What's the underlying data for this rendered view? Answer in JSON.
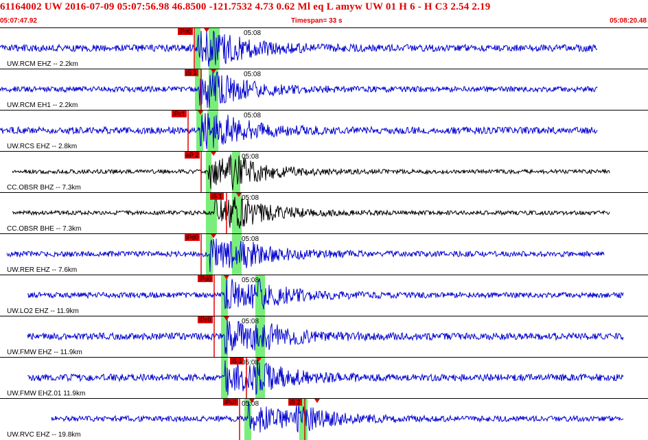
{
  "header": {
    "title": "61164002 UW 2016-07-09 05:07:56.98   46.8500 -121.7532   4.73  0.62 Ml  eq  L amyw     UW 01  H   6  -  H C3     2.54  2.19",
    "start_time": "05:07:47.92",
    "timespan": "Timespan=  33 s",
    "end_time": "05:08:20.48"
  },
  "colors": {
    "trace_blue": "#0000d0",
    "trace_black": "#000000",
    "pick_red": "#e00000",
    "window_green": "#7aee7a"
  },
  "panels": [
    {
      "channel": "UW.RCM EHZ -- 2.2km",
      "tick": "05:08",
      "picks": [
        {
          "label": "iPd0",
          "pos": 0.3
        }
      ],
      "trace_color": "trace_blue"
    },
    {
      "channel": "UW.RCM EH1 -- 2.2km",
      "tick": "05:08",
      "picks": [
        {
          "label": "iS 1",
          "pos": 0.31
        }
      ],
      "trace_color": "trace_blue"
    },
    {
      "channel": "UW.RCS EHZ -- 2.8km",
      "tick": "05:08",
      "picks": [
        {
          "label": "iPc1",
          "pos": 0.29
        }
      ],
      "trace_color": "trace_blue"
    },
    {
      "channel": "CC.OBSR BHZ -- 7.3km",
      "tick": "05:08",
      "picks": [
        {
          "label": "eP 2",
          "pos": 0.31
        }
      ],
      "trace_color": "trace_black"
    },
    {
      "channel": "CC.OBSR BHE -- 7.3km",
      "tick": "05:08",
      "picks": [
        {
          "label": "iS 1",
          "pos": 0.35
        }
      ],
      "trace_color": "trace_black"
    },
    {
      "channel": "UW.RER EHZ -- 7.6km",
      "tick": "05:08",
      "picks": [
        {
          "label": "iPd0",
          "pos": 0.31
        }
      ],
      "trace_color": "trace_blue"
    },
    {
      "channel": "UW.LO2 EHZ -- 11.9km",
      "tick": "05:08",
      "picks": [
        {
          "label": "iPd0",
          "pos": 0.33
        }
      ],
      "trace_color": "trace_blue"
    },
    {
      "channel": "UW.FMW EHZ -- 11.9km",
      "tick": "05:08",
      "picks": [
        {
          "label": "iPc0",
          "pos": 0.33
        }
      ],
      "trace_color": "trace_blue"
    },
    {
      "channel": "UW.FMW EHZ.01 11.9km",
      "tick": "05:08",
      "picks": [
        {
          "label": "iS 1",
          "pos": 0.38
        }
      ],
      "trace_color": "trace_blue"
    },
    {
      "channel": "UW.RVC EHZ -- 19.8km",
      "tick": "05:08",
      "picks": [
        {
          "label": "iPc0",
          "pos": 0.37
        },
        {
          "label": "iS 2",
          "pos": 0.47
        }
      ],
      "trace_color": "trace_blue"
    }
  ]
}
